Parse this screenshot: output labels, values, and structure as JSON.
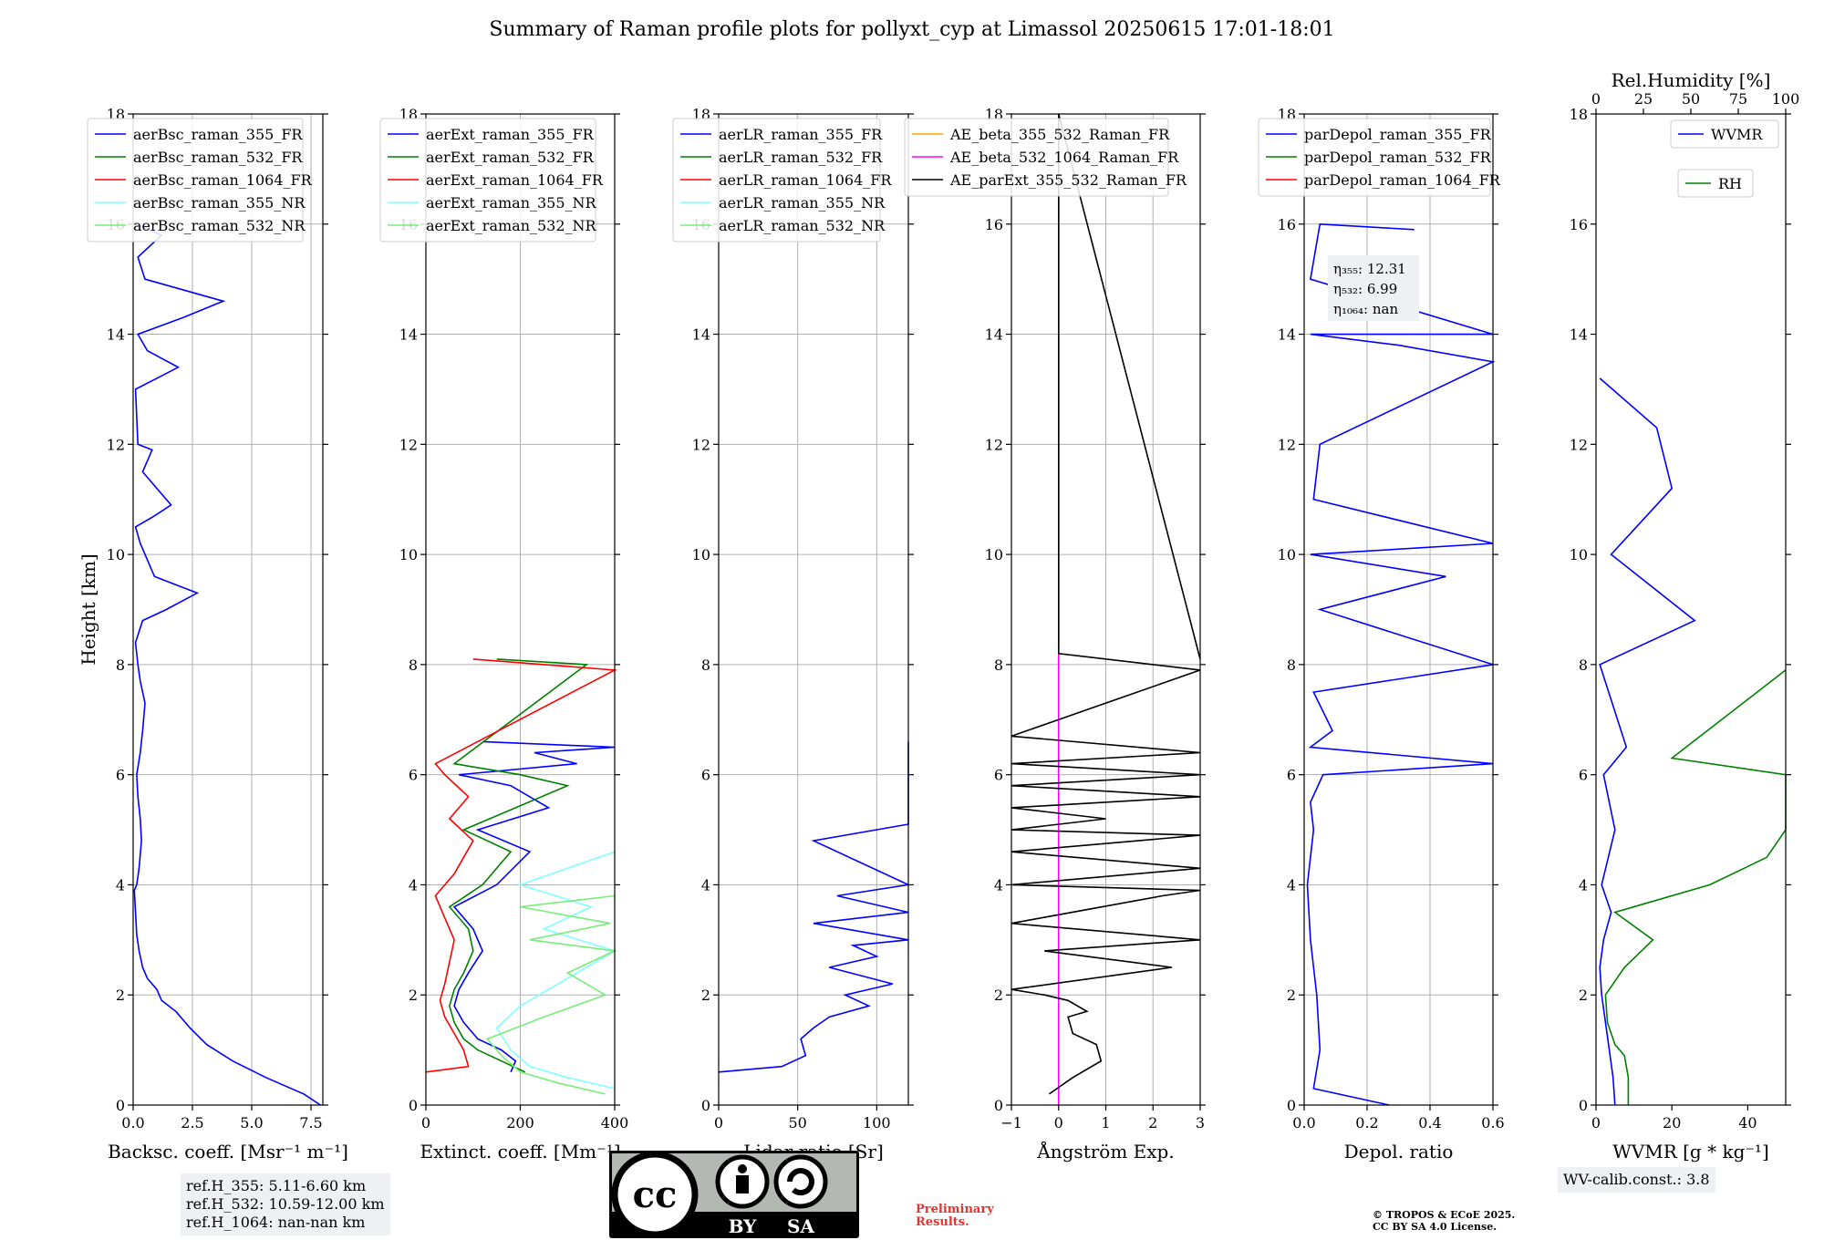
{
  "title": "Summary of Raman profile plots for pollyxt_cyp at Limassol 20250615 17:01-18:01",
  "ref_heights": [
    "ref.H_355: 5.11-6.60 km",
    "ref.H_532: 10.59-12.00 km",
    "ref.H_1064: nan-nan km"
  ],
  "wv_calib": "WV-calib.const.: 3.8",
  "preliminary": [
    "Preliminary",
    "Results."
  ],
  "copyright": [
    "© TROPOS & ECoE 2025.",
    "CC BY SA 4.0 License."
  ],
  "license_badge": {
    "icon": "cc-by-sa-icon",
    "by": "BY",
    "sa": "SA"
  },
  "colors": {
    "blue": "#0000ff",
    "green": "#008000",
    "red": "#ff0000",
    "cyan": "#7fffff",
    "lightgreen": "#77ee77",
    "orange": "#ffa500",
    "magenta": "#ff00ff",
    "black": "#000000"
  },
  "chart_data": [
    {
      "type": "line",
      "xlabel": "Backsc. coeff. [Msr⁻¹ m⁻¹]",
      "ylabel": "Height [km]",
      "xlim": [
        0,
        8
      ],
      "ylim": [
        0,
        18
      ],
      "xticks": [
        "0.0",
        "2.5",
        "5.0",
        "7.5"
      ],
      "xtick_values": [
        0,
        2.5,
        5,
        7.5
      ],
      "yticks": [
        0,
        2,
        4,
        6,
        8,
        10,
        12,
        14,
        16,
        18
      ],
      "grid": true,
      "legend_position": "top-left",
      "series": [
        {
          "name": "aerBsc_raman_355_FR",
          "color": "#0000ff",
          "x": [
            7.9,
            7.2,
            5.6,
            4.2,
            3.1,
            2.4,
            1.8,
            1.2,
            1.0,
            0.6,
            0.4,
            0.25,
            0.15,
            0.1,
            0.05,
            0.15,
            0.25,
            0.35,
            0.3,
            0.2,
            0.15,
            0.3,
            0.4,
            0.5,
            0.3,
            0.2,
            0.1,
            0.4,
            1.4,
            2.7,
            0.9,
            0.6,
            0.3,
            0.1,
            0.9,
            1.6,
            0.4,
            0.8,
            0.2,
            0.1,
            1.0,
            1.9,
            0.6,
            0.2,
            2.1,
            3.8,
            0.5,
            0.2,
            1.2,
            0.1
          ],
          "y": [
            0,
            0.2,
            0.5,
            0.8,
            1.1,
            1.4,
            1.7,
            1.9,
            2.1,
            2.3,
            2.5,
            2.8,
            3.1,
            3.5,
            3.9,
            4.0,
            4.3,
            4.8,
            5.2,
            5.6,
            6.0,
            6.4,
            6.8,
            7.3,
            7.7,
            8.0,
            8.4,
            8.8,
            9.0,
            9.3,
            9.6,
            9.9,
            10.2,
            10.5,
            10.7,
            10.9,
            11.5,
            11.9,
            12.0,
            13.0,
            13.2,
            13.4,
            13.7,
            14.0,
            14.3,
            14.6,
            15.0,
            15.4,
            15.8,
            16.0
          ]
        },
        {
          "name": "aerBsc_raman_532_FR",
          "color": "#008000",
          "x": [],
          "y": []
        },
        {
          "name": "aerBsc_raman_1064_FR",
          "color": "#ff0000",
          "x": [],
          "y": []
        },
        {
          "name": "aerBsc_raman_355_NR",
          "color": "#7fffff",
          "x": [],
          "y": []
        },
        {
          "name": "aerBsc_raman_532_NR",
          "color": "#77ee77",
          "x": [],
          "y": []
        }
      ]
    },
    {
      "type": "line",
      "xlabel": "Extinct. coeff. [Mm⁻¹]",
      "xlim": [
        0,
        400
      ],
      "ylim": [
        0,
        18
      ],
      "xticks": [
        "0",
        "200",
        "400"
      ],
      "xtick_values": [
        0,
        200,
        400
      ],
      "yticks": [
        0,
        2,
        4,
        6,
        8,
        10,
        12,
        14,
        16,
        18
      ],
      "grid": true,
      "legend_position": "top-left",
      "series": [
        {
          "name": "aerExt_raman_355_FR",
          "color": "#0000ff",
          "x": [
            180,
            190,
            160,
            110,
            80,
            60,
            70,
            90,
            120,
            100,
            60,
            150,
            220,
            110,
            260,
            180,
            70,
            320,
            230,
            420,
            120
          ],
          "y": [
            0.6,
            0.8,
            1.0,
            1.2,
            1.5,
            1.8,
            2.1,
            2.4,
            2.8,
            3.2,
            3.6,
            4.0,
            4.6,
            5.0,
            5.4,
            5.8,
            6.0,
            6.2,
            6.4,
            6.5,
            6.6
          ]
        },
        {
          "name": "aerExt_raman_532_FR",
          "color": "#008000",
          "x": [
            210,
            160,
            110,
            80,
            60,
            50,
            60,
            80,
            100,
            90,
            50,
            120,
            180,
            80,
            300,
            200,
            60,
            340,
            150
          ],
          "y": [
            0.6,
            0.8,
            1.0,
            1.2,
            1.5,
            1.8,
            2.1,
            2.4,
            2.8,
            3.2,
            3.6,
            4.0,
            4.6,
            5.0,
            5.8,
            6.0,
            6.2,
            8.0,
            8.1
          ]
        },
        {
          "name": "aerExt_raman_1064_FR",
          "color": "#ff0000",
          "x": [
            0,
            90,
            80,
            60,
            40,
            30,
            40,
            50,
            60,
            40,
            20,
            60,
            100,
            50,
            90,
            40,
            20,
            400,
            100
          ],
          "y": [
            0.6,
            0.7,
            1.0,
            1.3,
            1.6,
            1.9,
            2.2,
            2.6,
            3.0,
            3.4,
            3.8,
            4.2,
            4.8,
            5.2,
            5.6,
            6.0,
            6.2,
            7.9,
            8.1
          ]
        },
        {
          "name": "aerExt_raman_355_NR",
          "color": "#7fffff",
          "x": [
            400,
            300,
            220,
            180,
            150,
            200,
            300,
            400,
            250,
            350,
            200,
            400
          ],
          "y": [
            0.3,
            0.5,
            0.7,
            1.0,
            1.4,
            1.8,
            2.3,
            2.8,
            3.2,
            3.6,
            4.0,
            4.6
          ]
        },
        {
          "name": "aerExt_raman_532_NR",
          "color": "#77ee77",
          "x": [
            380,
            280,
            200,
            160,
            130,
            250,
            380,
            300,
            400,
            220,
            390,
            200,
            400
          ],
          "y": [
            0.2,
            0.4,
            0.6,
            0.9,
            1.2,
            1.6,
            2.0,
            2.4,
            2.8,
            3.0,
            3.3,
            3.6,
            3.8
          ]
        }
      ]
    },
    {
      "type": "line",
      "xlabel": "Lidar ratio [Sr]",
      "xlim": [
        0,
        120
      ],
      "ylim": [
        0,
        18
      ],
      "xticks": [
        "0",
        "50",
        "100"
      ],
      "xtick_values": [
        0,
        50,
        100
      ],
      "yticks": [
        0,
        2,
        4,
        6,
        8,
        10,
        12,
        14,
        16,
        18
      ],
      "grid": true,
      "legend_position": "top-left",
      "series": [
        {
          "name": "aerLR_raman_355_FR",
          "color": "#0000ff",
          "x": [
            0,
            40,
            55,
            52,
            60,
            70,
            95,
            80,
            110,
            70,
            100,
            85,
            120,
            60,
            120,
            75,
            120,
            60,
            120,
            120,
            120,
            120
          ],
          "y": [
            0.6,
            0.7,
            0.9,
            1.2,
            1.4,
            1.6,
            1.8,
            2.0,
            2.2,
            2.5,
            2.7,
            2.9,
            3.0,
            3.3,
            3.5,
            3.8,
            4.0,
            4.8,
            5.1,
            6.0,
            6.3,
            6.6
          ]
        },
        {
          "name": "aerLR_raman_532_FR",
          "color": "#008000",
          "x": [],
          "y": []
        },
        {
          "name": "aerLR_raman_1064_FR",
          "color": "#ff0000",
          "x": [],
          "y": []
        },
        {
          "name": "aerLR_raman_355_NR",
          "color": "#7fffff",
          "x": [],
          "y": []
        },
        {
          "name": "aerLR_raman_532_NR",
          "color": "#77ee77",
          "x": [],
          "y": []
        }
      ]
    },
    {
      "type": "line",
      "xlabel": "Ångström Exp.",
      "xlim": [
        -1,
        3
      ],
      "ylim": [
        0,
        18
      ],
      "xticks": [
        "−1",
        "0",
        "1",
        "2",
        "3"
      ],
      "xtick_values": [
        -1,
        0,
        1,
        2,
        3
      ],
      "yticks": [
        0,
        2,
        4,
        6,
        8,
        10,
        12,
        14,
        16,
        18
      ],
      "grid": true,
      "legend_position": "top-right",
      "series": [
        {
          "name": "AE_beta_355_532_Raman_FR",
          "color": "#ffa500",
          "x": [],
          "y": []
        },
        {
          "name": "AE_beta_532_1064_Raman_FR",
          "color": "#ff00ff",
          "x": [
            0,
            0
          ],
          "y": [
            0,
            18
          ]
        },
        {
          "name": "AE_parExt_355_532_Raman_FR",
          "color": "#000000",
          "x": [
            -0.2,
            0.3,
            0.9,
            0.8,
            0.3,
            0.2,
            0.6,
            0.2,
            -0.3,
            -1.0,
            2.4,
            -0.3,
            3.0,
            -1.0,
            2.2,
            3.0,
            -1.0,
            3.0,
            -1.0,
            3.0,
            -1.0,
            1.0,
            -1.0,
            3.0,
            -1.0,
            3.0,
            -1.0,
            3.0,
            -1.0,
            3.0,
            0.0,
            0.0,
            3.0
          ],
          "y": [
            0.2,
            0.5,
            0.8,
            1.1,
            1.3,
            1.6,
            1.7,
            1.9,
            2.0,
            2.1,
            2.5,
            2.8,
            3.0,
            3.3,
            3.8,
            3.9,
            4.0,
            4.3,
            4.6,
            4.9,
            5.0,
            5.2,
            5.4,
            5.6,
            5.8,
            6.0,
            6.2,
            6.4,
            6.7,
            7.9,
            8.2,
            18.0,
            8.1
          ]
        }
      ]
    },
    {
      "type": "line",
      "xlabel": "Depol. ratio",
      "xlim": [
        0,
        0.6
      ],
      "ylim": [
        0,
        18
      ],
      "xticks": [
        "0.0",
        "0.2",
        "0.4",
        "0.6"
      ],
      "xtick_values": [
        0,
        0.2,
        0.4,
        0.6
      ],
      "yticks": [
        0,
        2,
        4,
        6,
        8,
        10,
        12,
        14,
        16,
        18
      ],
      "grid": true,
      "legend_position": "top-left",
      "series": [
        {
          "name": "parDepol_raman_355_FR",
          "color": "#0000ff",
          "x": [
            0.27,
            0.03,
            0.05,
            0.04,
            0.02,
            0.01,
            0.03,
            0.02,
            0.06,
            0.6,
            0.02,
            0.09,
            0.03,
            0.6,
            0.05,
            0.45,
            0.02,
            0.6,
            0.03,
            0.05,
            0.6,
            0.3,
            0.02,
            0.6,
            0.02,
            0.05,
            0.35
          ],
          "y": [
            0.0,
            0.3,
            1.0,
            2.0,
            3.0,
            4.0,
            5.0,
            5.5,
            6.0,
            6.2,
            6.5,
            6.8,
            7.5,
            8.0,
            9.0,
            9.6,
            10.0,
            10.2,
            11.0,
            12.0,
            13.5,
            13.8,
            14.0,
            14.0,
            15.0,
            16.0,
            15.9
          ]
        },
        {
          "name": "parDepol_raman_532_FR",
          "color": "#008000",
          "x": [],
          "y": []
        },
        {
          "name": "parDepol_raman_1064_FR",
          "color": "#ff0000",
          "x": [],
          "y": []
        }
      ],
      "annotation": [
        "η₃₅₅: 12.31",
        "η₅₃₂: 6.99",
        "η₁₀₆₄: nan"
      ]
    },
    {
      "type": "line",
      "xlabel": "WVMR [g * kg⁻¹]",
      "x2label": "Rel.Humidity [%]",
      "xlim": [
        0,
        50
      ],
      "x2lim": [
        0,
        100
      ],
      "ylim": [
        0,
        18
      ],
      "xticks": [
        "0",
        "20",
        "40"
      ],
      "xtick_values": [
        0,
        20,
        40
      ],
      "x2ticks": [
        "0",
        "25",
        "50",
        "75",
        "100"
      ],
      "x2tick_values": [
        0,
        25,
        50,
        75,
        100
      ],
      "yticks": [
        0,
        2,
        4,
        6,
        8,
        10,
        12,
        14,
        16,
        18
      ],
      "grid": false,
      "legend_position": "top-right",
      "series": [
        {
          "name": "WVMR",
          "color": "#0000ff",
          "x": [
            5.0,
            4.5,
            3.5,
            2.5,
            1.5,
            1.0,
            2.0,
            4.0,
            1.5,
            5.0,
            2.0,
            8.0,
            1.0,
            26.0,
            4.0,
            20.0,
            16.0,
            1.0
          ],
          "y": [
            0.0,
            0.5,
            1.0,
            1.5,
            2.0,
            2.5,
            3.0,
            3.5,
            4.0,
            5.0,
            6.0,
            6.5,
            8.0,
            8.8,
            10.0,
            11.2,
            12.3,
            13.2
          ]
        },
        {
          "name": "RH",
          "color": "#008000",
          "x2": [
            17,
            17,
            15,
            10,
            6,
            5,
            15,
            30,
            10,
            60,
            90,
            100,
            100,
            100,
            40,
            100
          ],
          "y": [
            0.0,
            0.5,
            0.9,
            1.1,
            1.5,
            2.0,
            2.5,
            3.0,
            3.5,
            4.0,
            4.5,
            5.0,
            5.5,
            6.0,
            6.3,
            7.9
          ]
        }
      ]
    }
  ]
}
